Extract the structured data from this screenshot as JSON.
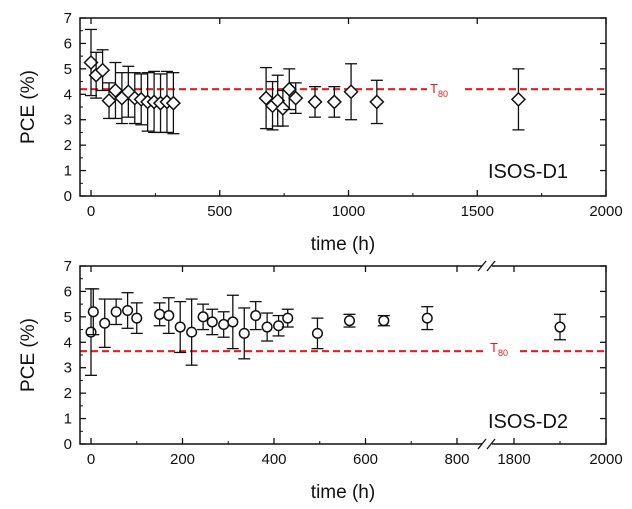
{
  "chart_data": [
    {
      "type": "scatter",
      "panel_label": "ISOS-D1",
      "xlabel": "time (h)",
      "ylabel": "PCE (%)",
      "xlim": [
        -60,
        2000
      ],
      "ylim": [
        0,
        7
      ],
      "x_ticks": [
        0,
        500,
        1000,
        1500,
        2000
      ],
      "y_ticks": [
        0,
        1,
        2,
        3,
        4,
        5,
        6,
        7
      ],
      "marker": "diamond",
      "threshold": {
        "label": "T",
        "subscript": "80",
        "value": 4.2,
        "color": "#e02020"
      },
      "points": [
        {
          "x": 0,
          "y": 5.25,
          "err": 1.3
        },
        {
          "x": 20,
          "y": 4.75,
          "err": 0.9
        },
        {
          "x": 45,
          "y": 4.95,
          "err": 0.8
        },
        {
          "x": 70,
          "y": 3.75,
          "err": 0.7
        },
        {
          "x": 95,
          "y": 4.15,
          "err": 1.1
        },
        {
          "x": 120,
          "y": 3.85,
          "err": 1.0
        },
        {
          "x": 145,
          "y": 4.1,
          "err": 1.0
        },
        {
          "x": 170,
          "y": 3.85,
          "err": 1.0
        },
        {
          "x": 195,
          "y": 3.8,
          "err": 1.0
        },
        {
          "x": 220,
          "y": 3.7,
          "err": 1.15
        },
        {
          "x": 245,
          "y": 3.7,
          "err": 1.2
        },
        {
          "x": 270,
          "y": 3.65,
          "err": 1.15
        },
        {
          "x": 295,
          "y": 3.7,
          "err": 1.2
        },
        {
          "x": 320,
          "y": 3.65,
          "err": 1.2
        },
        {
          "x": 680,
          "y": 3.85,
          "err": 1.2
        },
        {
          "x": 705,
          "y": 3.55,
          "err": 0.95
        },
        {
          "x": 725,
          "y": 3.75,
          "err": 1.0
        },
        {
          "x": 745,
          "y": 3.45,
          "err": 0.7
        },
        {
          "x": 770,
          "y": 4.2,
          "err": 0.8
        },
        {
          "x": 795,
          "y": 3.85,
          "err": 0.6
        },
        {
          "x": 870,
          "y": 3.7,
          "err": 0.6
        },
        {
          "x": 945,
          "y": 3.7,
          "err": 0.6
        },
        {
          "x": 1010,
          "y": 4.1,
          "err": 1.1
        },
        {
          "x": 1110,
          "y": 3.7,
          "err": 0.85
        },
        {
          "x": 1660,
          "y": 3.8,
          "err": 1.2
        }
      ]
    },
    {
      "type": "scatter",
      "panel_label": "ISOS-D2",
      "xlabel": "time (h)",
      "ylabel": "PCE (%)",
      "ylim": [
        0,
        7
      ],
      "x_ticks": [
        0,
        200,
        400,
        600,
        800,
        1800,
        2000
      ],
      "y_ticks": [
        0,
        1,
        2,
        3,
        4,
        5,
        6,
        7
      ],
      "axis_break": true,
      "marker": "circle",
      "threshold": {
        "label": "T",
        "subscript": "80",
        "value": 3.65,
        "color": "#e02020"
      },
      "points": [
        {
          "x": 0,
          "y": 4.4,
          "err": 1.7
        },
        {
          "x": 5,
          "y": 5.2,
          "err": 0.9
        },
        {
          "x": 30,
          "y": 4.75,
          "err": 0.95
        },
        {
          "x": 55,
          "y": 5.2,
          "err": 0.5
        },
        {
          "x": 80,
          "y": 5.25,
          "err": 0.7
        },
        {
          "x": 100,
          "y": 4.95,
          "err": 0.6
        },
        {
          "x": 150,
          "y": 5.1,
          "err": 0.45
        },
        {
          "x": 170,
          "y": 5.05,
          "err": 0.7
        },
        {
          "x": 195,
          "y": 4.6,
          "err": 1.0
        },
        {
          "x": 220,
          "y": 4.4,
          "err": 1.3
        },
        {
          "x": 245,
          "y": 5.0,
          "err": 0.5
        },
        {
          "x": 265,
          "y": 4.8,
          "err": 0.5
        },
        {
          "x": 290,
          "y": 4.7,
          "err": 0.5
        },
        {
          "x": 310,
          "y": 4.8,
          "err": 1.05
        },
        {
          "x": 335,
          "y": 4.35,
          "err": 1.0
        },
        {
          "x": 360,
          "y": 5.05,
          "err": 0.55
        },
        {
          "x": 385,
          "y": 4.6,
          "err": 0.55
        },
        {
          "x": 410,
          "y": 4.65,
          "err": 0.4
        },
        {
          "x": 430,
          "y": 4.95,
          "err": 0.35
        },
        {
          "x": 495,
          "y": 4.35,
          "err": 0.6
        },
        {
          "x": 565,
          "y": 4.85,
          "err": 0.25
        },
        {
          "x": 640,
          "y": 4.85,
          "err": 0.2
        },
        {
          "x": 735,
          "y": 4.95,
          "err": 0.45
        },
        {
          "x": 1900,
          "y": 4.6,
          "err": 0.5
        }
      ]
    }
  ]
}
